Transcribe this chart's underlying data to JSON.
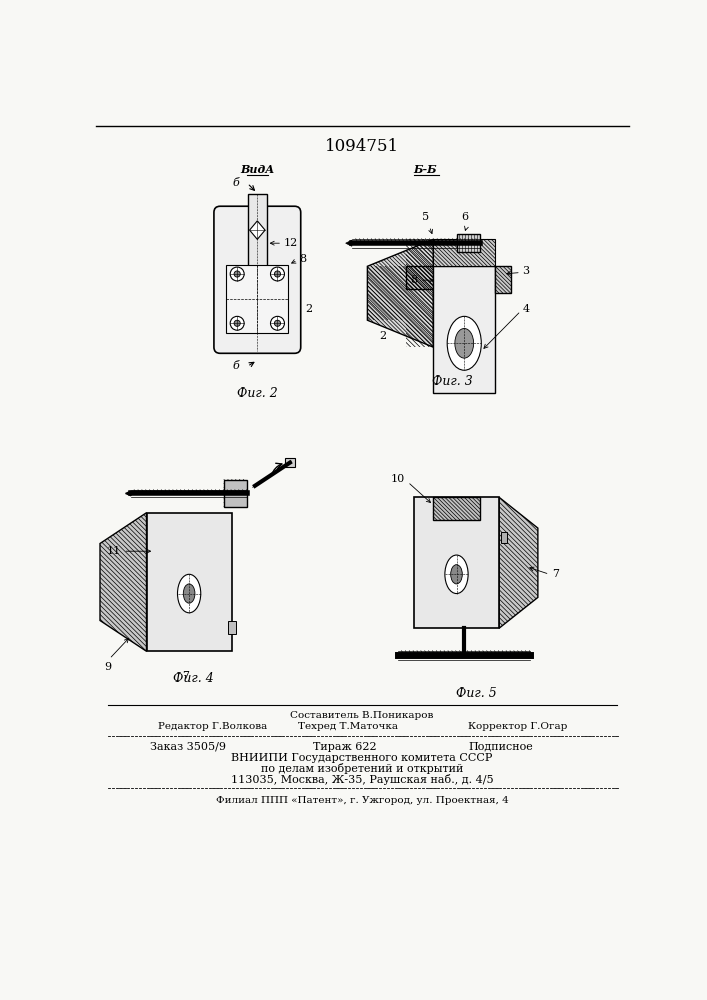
{
  "patent_number": "1094751",
  "background_color": "#f8f8f5",
  "fig2_label": "Фиг. 2",
  "fig3_label": "Фиг. 3",
  "fig4_label": "Фиг. 4",
  "fig5_label": "Фиг. 5",
  "vida_label": "ВидА",
  "bb_label": "Б-Б",
  "footer_sestavitel": "Составитель В.Поникаров",
  "footer_redaktor": "Редактор Г.Волкова",
  "footer_tehred": "Техред Т.Маточка",
  "footer_korrektor": "Корректор Г.Огар",
  "footer_zakaz": "Заказ 3505/9",
  "footer_tirazh": "Тираж 622",
  "footer_podpisnoe": "Подписное",
  "footer_vniip1": "ВНИИПИ Государственного комитета СССР",
  "footer_vniip2": "по делам изобретений и открытий",
  "footer_addr": "113035, Москва, Ж-35, Раушская наб., д. 4/5",
  "footer_filial": "Филиал ППП «Патент», г. Ужгород, ул. Проектная, 4"
}
